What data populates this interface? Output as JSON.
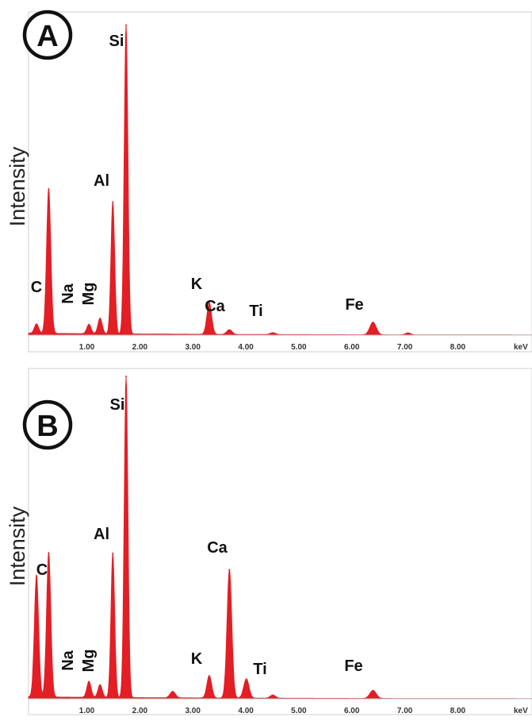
{
  "chart_data": [
    {
      "type": "area",
      "panel_label": "A",
      "ylabel": "Intensity",
      "xunit": "keV",
      "xlim": [
        -0.1,
        9.4
      ],
      "ylim": [
        0,
        100
      ],
      "x_ticks": [
        "1.00",
        "2.00",
        "3.00",
        "4.00",
        "5.00",
        "6.00",
        "7.00",
        "8.00"
      ],
      "grid": false,
      "color": "#e31e24",
      "peaks": [
        {
          "label": "",
          "x": 0.05,
          "y": 3,
          "w": 0.04
        },
        {
          "label": "C",
          "x": 0.28,
          "y": 46,
          "w": 0.04
        },
        {
          "label": "Na",
          "x": 1.04,
          "y": 3,
          "w": 0.04
        },
        {
          "label": "Mg",
          "x": 1.25,
          "y": 5,
          "w": 0.04
        },
        {
          "label": "Al",
          "x": 1.49,
          "y": 42,
          "w": 0.035
        },
        {
          "label": "Si",
          "x": 1.74,
          "y": 98,
          "w": 0.035
        },
        {
          "label": "K",
          "x": 3.31,
          "y": 10,
          "w": 0.045
        },
        {
          "label": "Ca",
          "x": 3.69,
          "y": 1.5,
          "w": 0.05
        },
        {
          "label": "Ti",
          "x": 4.51,
          "y": 0.6,
          "w": 0.05
        },
        {
          "label": "Fe",
          "x": 6.4,
          "y": 4,
          "w": 0.06
        },
        {
          "label": "",
          "x": 7.06,
          "y": 0.6,
          "w": 0.05
        }
      ]
    },
    {
      "type": "area",
      "panel_label": "B",
      "ylabel": "Intensity",
      "xunit": "keV",
      "xlim": [
        -0.1,
        9.4
      ],
      "ylim": [
        0,
        100
      ],
      "x_ticks": [
        "1.00",
        "2.00",
        "3.00",
        "4.00",
        "5.00",
        "6.00",
        "7.00",
        "8.00"
      ],
      "grid": false,
      "color": "#e31e24",
      "peaks": [
        {
          "label": "C",
          "x": 0.05,
          "y": 38,
          "w": 0.04
        },
        {
          "label": "",
          "x": 0.28,
          "y": 45,
          "w": 0.04
        },
        {
          "label": "Na",
          "x": 1.04,
          "y": 5,
          "w": 0.04
        },
        {
          "label": "Mg",
          "x": 1.25,
          "y": 4,
          "w": 0.04
        },
        {
          "label": "Al",
          "x": 1.49,
          "y": 45,
          "w": 0.035
        },
        {
          "label": "Si",
          "x": 1.74,
          "y": 100,
          "w": 0.035
        },
        {
          "label": "",
          "x": 2.62,
          "y": 2,
          "w": 0.05
        },
        {
          "label": "K",
          "x": 3.31,
          "y": 7,
          "w": 0.045
        },
        {
          "label": "Ca",
          "x": 3.69,
          "y": 40,
          "w": 0.045
        },
        {
          "label": "",
          "x": 4.01,
          "y": 6,
          "w": 0.05
        },
        {
          "label": "Ti",
          "x": 4.51,
          "y": 1,
          "w": 0.05
        },
        {
          "label": "Fe",
          "x": 6.4,
          "y": 2.5,
          "w": 0.06
        }
      ]
    }
  ]
}
